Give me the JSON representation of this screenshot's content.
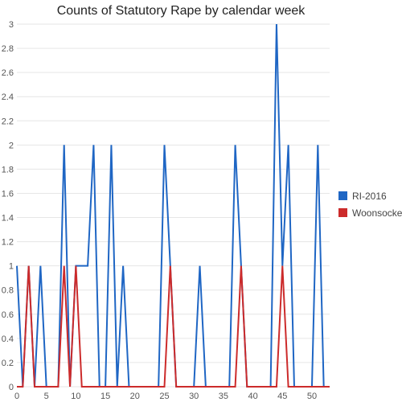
{
  "chart_data": {
    "type": "line",
    "title": "Counts of Statutory Rape by calendar week",
    "xlabel": "",
    "ylabel": "",
    "xlim": [
      0,
      53
    ],
    "ylim": [
      0,
      3
    ],
    "x_ticks": [
      0,
      5,
      10,
      15,
      20,
      25,
      30,
      35,
      40,
      45,
      50
    ],
    "y_ticks": [
      0,
      0.2,
      0.4,
      0.6,
      0.8,
      1,
      1.2,
      1.4,
      1.6,
      1.8,
      2,
      2.2,
      2.4,
      2.6,
      2.8,
      3
    ],
    "grid": true,
    "legend_position": "right",
    "x": [
      0,
      1,
      2,
      3,
      4,
      5,
      6,
      7,
      8,
      9,
      10,
      11,
      12,
      13,
      14,
      15,
      16,
      17,
      18,
      19,
      20,
      21,
      22,
      23,
      24,
      25,
      26,
      27,
      28,
      29,
      30,
      31,
      32,
      33,
      34,
      35,
      36,
      37,
      38,
      39,
      40,
      41,
      42,
      43,
      44,
      45,
      46,
      47,
      48,
      49,
      50,
      51,
      52,
      53
    ],
    "series": [
      {
        "name": "RI-2016",
        "color": "#1f66c4",
        "values": [
          1,
          0,
          1,
          0,
          1,
          0,
          0,
          0,
          2,
          0,
          1,
          1,
          1,
          2,
          0,
          0,
          2,
          0,
          1,
          0,
          0,
          0,
          0,
          0,
          0,
          2,
          1,
          0,
          0,
          0,
          0,
          1,
          0,
          0,
          0,
          0,
          0,
          2,
          1,
          0,
          0,
          0,
          0,
          0,
          3,
          1,
          2,
          0,
          0,
          0,
          0,
          2,
          0,
          0
        ]
      },
      {
        "name": "Woonsocket",
        "color": "#cc2b2b",
        "values": [
          0,
          0,
          1,
          0,
          0,
          0,
          0,
          0,
          1,
          0,
          1,
          0,
          0,
          0,
          0,
          0,
          0,
          0,
          0,
          0,
          0,
          0,
          0,
          0,
          0,
          0,
          1,
          0,
          0,
          0,
          0,
          0,
          0,
          0,
          0,
          0,
          0,
          0,
          1,
          0,
          0,
          0,
          0,
          0,
          0,
          1,
          0,
          0,
          0,
          0,
          0,
          0,
          0,
          0
        ]
      }
    ]
  }
}
